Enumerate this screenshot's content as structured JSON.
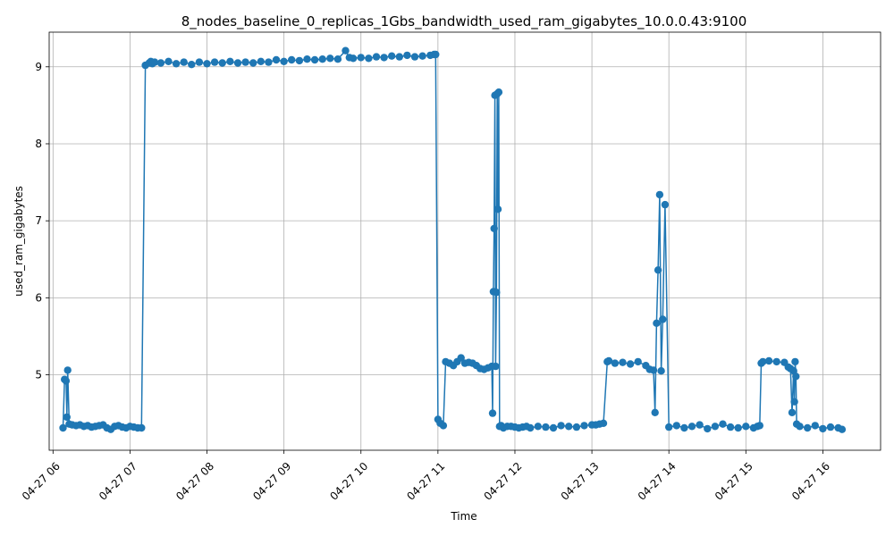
{
  "chart_data": {
    "type": "line",
    "title": "8_nodes_baseline_0_replicas_1Gbs_bandwidth_used_ram_gigabytes_10.0.0.43:9100",
    "xlabel": "Time",
    "ylabel": "used_ram_gigabytes",
    "grid": true,
    "markers": "circle",
    "color": "#1f77b4",
    "xlim": [
      5.95,
      16.75
    ],
    "ylim": [
      4.02,
      9.45
    ],
    "x_ticks": [
      {
        "value": 6,
        "label": "04-27 06"
      },
      {
        "value": 7,
        "label": "04-27 07"
      },
      {
        "value": 8,
        "label": "04-27 08"
      },
      {
        "value": 9,
        "label": "04-27 09"
      },
      {
        "value": 10,
        "label": "04-27 10"
      },
      {
        "value": 11,
        "label": "04-27 11"
      },
      {
        "value": 12,
        "label": "04-27 12"
      },
      {
        "value": 13,
        "label": "04-27 13"
      },
      {
        "value": 14,
        "label": "04-27 14"
      },
      {
        "value": 15,
        "label": "04-27 15"
      },
      {
        "value": 16,
        "label": "04-27 16"
      }
    ],
    "y_ticks": [
      {
        "value": 5,
        "label": "5"
      },
      {
        "value": 6,
        "label": "6"
      },
      {
        "value": 7,
        "label": "7"
      },
      {
        "value": 8,
        "label": "8"
      },
      {
        "value": 9,
        "label": "9"
      }
    ],
    "series": [
      {
        "x": [
          6.13,
          6.15,
          6.17,
          6.18,
          6.19,
          6.21,
          6.25,
          6.3,
          6.35,
          6.4,
          6.45,
          6.5,
          6.55,
          6.6,
          6.65,
          6.7,
          6.75,
          6.8,
          6.85,
          6.9,
          6.95,
          7.0,
          7.05,
          7.1,
          7.15,
          7.2,
          7.25,
          7.27,
          7.29,
          7.32,
          7.4,
          7.5,
          7.6,
          7.7,
          7.8,
          7.9,
          8.0,
          8.1,
          8.2,
          8.3,
          8.4,
          8.5,
          8.6,
          8.7,
          8.8,
          8.9,
          9.0,
          9.1,
          9.2,
          9.3,
          9.4,
          9.5,
          9.6,
          9.7,
          9.8,
          9.85,
          9.9,
          10.0,
          10.1,
          10.2,
          10.3,
          10.4,
          10.5,
          10.6,
          10.7,
          10.8,
          10.9,
          10.95,
          10.97,
          11.0,
          11.03,
          11.07,
          11.1,
          11.15,
          11.2,
          11.25,
          11.3,
          11.35,
          11.4,
          11.45,
          11.5,
          11.55,
          11.6,
          11.65,
          11.7,
          11.71,
          11.72,
          11.73,
          11.74,
          11.75,
          11.76,
          11.77,
          11.78,
          11.79,
          11.8,
          11.82,
          11.85,
          11.9,
          11.95,
          12.0,
          12.05,
          12.1,
          12.15,
          12.2,
          12.3,
          12.4,
          12.5,
          12.6,
          12.7,
          12.8,
          12.9,
          13.0,
          13.05,
          13.1,
          13.15,
          13.2,
          13.22,
          13.3,
          13.4,
          13.5,
          13.6,
          13.7,
          13.75,
          13.8,
          13.82,
          13.84,
          13.86,
          13.88,
          13.9,
          13.92,
          13.95,
          14.0,
          14.1,
          14.2,
          14.3,
          14.4,
          14.5,
          14.6,
          14.7,
          14.8,
          14.9,
          15.0,
          15.1,
          15.15,
          15.18,
          15.2,
          15.22,
          15.3,
          15.4,
          15.5,
          15.55,
          15.58,
          15.6,
          15.62,
          15.63,
          15.64,
          15.65,
          15.66,
          15.7,
          15.8,
          15.9,
          16.0,
          16.1,
          16.2,
          16.25
        ],
        "y": [
          4.31,
          4.94,
          4.92,
          4.45,
          5.06,
          4.36,
          4.35,
          4.34,
          4.35,
          4.33,
          4.34,
          4.32,
          4.33,
          4.34,
          4.35,
          4.31,
          4.29,
          4.33,
          4.34,
          4.32,
          4.31,
          4.33,
          4.32,
          4.31,
          4.31,
          9.02,
          9.05,
          9.07,
          9.04,
          9.06,
          9.05,
          9.07,
          9.04,
          9.06,
          9.03,
          9.06,
          9.04,
          9.06,
          9.05,
          9.07,
          9.05,
          9.06,
          9.05,
          9.07,
          9.06,
          9.09,
          9.07,
          9.09,
          9.08,
          9.1,
          9.09,
          9.1,
          9.11,
          9.1,
          9.21,
          9.12,
          9.11,
          9.12,
          9.11,
          9.13,
          9.12,
          9.14,
          9.13,
          9.15,
          9.13,
          9.14,
          9.15,
          9.16,
          9.16,
          4.42,
          4.37,
          4.34,
          5.17,
          5.15,
          5.12,
          5.17,
          5.22,
          5.15,
          5.16,
          5.15,
          5.12,
          5.08,
          5.07,
          5.09,
          5.11,
          4.5,
          6.08,
          6.9,
          8.63,
          5.11,
          6.07,
          8.65,
          7.15,
          8.67,
          4.33,
          4.34,
          4.31,
          4.33,
          4.33,
          4.32,
          4.31,
          4.32,
          4.33,
          4.31,
          4.33,
          4.32,
          4.31,
          4.34,
          4.33,
          4.32,
          4.34,
          4.35,
          4.35,
          4.36,
          4.37,
          5.17,
          5.18,
          5.15,
          5.16,
          5.14,
          5.17,
          5.12,
          5.07,
          5.06,
          4.51,
          5.67,
          6.36,
          7.34,
          5.05,
          5.72,
          7.21,
          4.32,
          4.34,
          4.31,
          4.33,
          4.35,
          4.3,
          4.33,
          4.36,
          4.32,
          4.31,
          4.33,
          4.31,
          4.33,
          4.34,
          5.15,
          5.17,
          5.18,
          5.17,
          5.16,
          5.1,
          5.08,
          4.51,
          5.05,
          4.65,
          5.17,
          4.98,
          4.36,
          4.33,
          4.31,
          4.34,
          4.3,
          4.32,
          4.31,
          4.29
        ]
      }
    ]
  }
}
